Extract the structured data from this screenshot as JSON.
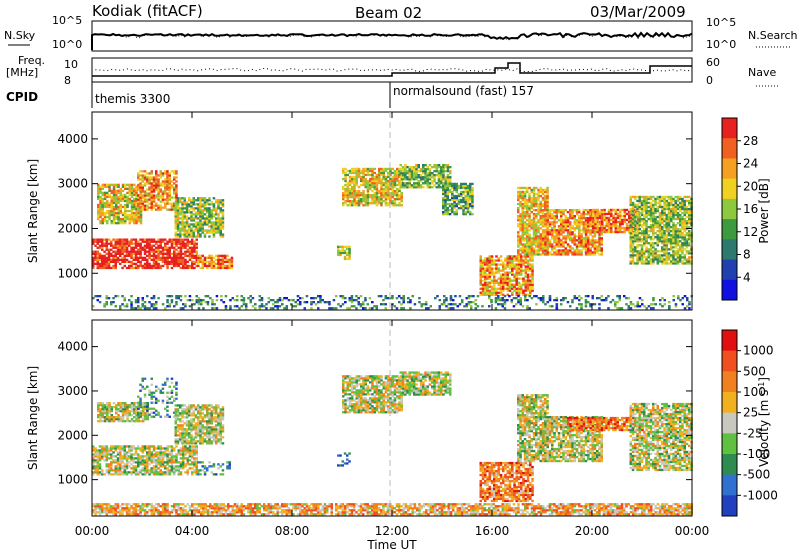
{
  "header": {
    "station": "Kodiak (fitACF)",
    "beam": "Beam 02",
    "date": "03/Mar/2009"
  },
  "summary_panel": {
    "left_labels": {
      "nsky": "N.Sky",
      "freq": "Freq.",
      "freq_unit": "[MHz]",
      "cpid": "CPID"
    },
    "right_labels": {
      "nsearch": "N.Search",
      "nave": "Nave"
    },
    "noise_ticks_left": [
      "10^5",
      "10^0"
    ],
    "noise_ticks_right": [
      "10^5",
      "10^0"
    ],
    "freq_ticks": [
      "10",
      "8"
    ],
    "nave_ticks": [
      "60",
      "0"
    ],
    "cpid_segments": [
      {
        "label": "themis 3300",
        "start_hour": 0.0
      },
      {
        "label": "normalsound (fast) 157",
        "start_hour": 12.0
      }
    ]
  },
  "chart_data": [
    {
      "type": "heatmap",
      "name": "power",
      "xlabel": "",
      "ylabel": "Slant Range [km]",
      "x_unit": "hours UT",
      "xlim": [
        0,
        24
      ],
      "ylim": [
        180,
        4600
      ],
      "yticks": [
        1000,
        2000,
        3000,
        4000
      ],
      "colorbar": {
        "label": "Power [dB]",
        "ticks": [
          "4",
          "8",
          "12",
          "16",
          "20",
          "24",
          "28"
        ],
        "colors": [
          "#1010e0",
          "#2040b0",
          "#2c7a6e",
          "#3e9a3e",
          "#8ec83e",
          "#f0d020",
          "#f5a020",
          "#f06020",
          "#e82020"
        ]
      },
      "regions": [
        {
          "t": [
            0.0,
            4.2
          ],
          "r": [
            1100,
            1750
          ],
          "level": 0.97
        },
        {
          "t": [
            4.2,
            5.6
          ],
          "r": [
            1100,
            1400
          ],
          "level": 0.78
        },
        {
          "t": [
            0.2,
            2.0
          ],
          "r": [
            2100,
            3000
          ],
          "level": 0.62
        },
        {
          "t": [
            1.8,
            3.4
          ],
          "r": [
            2400,
            3300
          ],
          "level": 0.72
        },
        {
          "t": [
            3.3,
            5.2
          ],
          "r": [
            1800,
            2700
          ],
          "level": 0.5
        },
        {
          "t": [
            9.8,
            10.3
          ],
          "r": [
            1300,
            1600
          ],
          "level": 0.55
        },
        {
          "t": [
            10.0,
            12.4
          ],
          "r": [
            2500,
            3350
          ],
          "level": 0.62
        },
        {
          "t": [
            12.3,
            14.3
          ],
          "r": [
            2900,
            3400
          ],
          "level": 0.45
        },
        {
          "t": [
            14.0,
            15.2
          ],
          "r": [
            2300,
            3000
          ],
          "level": 0.4
        },
        {
          "t": [
            15.5,
            17.6
          ],
          "r": [
            500,
            1400
          ],
          "level": 0.72
        },
        {
          "t": [
            17.0,
            18.2
          ],
          "r": [
            1400,
            2900
          ],
          "level": 0.66
        },
        {
          "t": [
            18.0,
            20.4
          ],
          "r": [
            1400,
            2400
          ],
          "level": 0.74
        },
        {
          "t": [
            20.0,
            21.8
          ],
          "r": [
            1900,
            2400
          ],
          "level": 0.82
        },
        {
          "t": [
            21.5,
            24.0
          ],
          "r": [
            1200,
            2700
          ],
          "level": 0.5
        },
        {
          "t": [
            0.0,
            24.0
          ],
          "r": [
            200,
            500
          ],
          "level": 0.3
        }
      ]
    },
    {
      "type": "heatmap",
      "name": "velocity",
      "xlabel": "Time UT",
      "ylabel": "Slant Range [km]",
      "x_unit": "hours UT",
      "xlim": [
        0,
        24
      ],
      "ylim": [
        180,
        4600
      ],
      "yticks": [
        1000,
        2000,
        3000,
        4000
      ],
      "xticks": [
        "00:00",
        "04:00",
        "08:00",
        "12:00",
        "16:00",
        "20:00",
        "00:00"
      ],
      "colorbar": {
        "label": "Velocity [m s",
        "label_superscript": "-1",
        "label_close": "]",
        "ticks": [
          "1000",
          "500",
          "100",
          "25",
          "-25",
          "-100",
          "-500",
          "-1000"
        ],
        "colors": [
          "#2040c0",
          "#3070d0",
          "#2e8c50",
          "#60c040",
          "#c8c8c0",
          "#f0b020",
          "#f08020",
          "#f05020",
          "#e01010"
        ]
      },
      "regions": [
        {
          "t": [
            0.0,
            4.2
          ],
          "r": [
            1100,
            1750
          ],
          "level": 0.5
        },
        {
          "t": [
            4.2,
            5.6
          ],
          "r": [
            1100,
            1400
          ],
          "level": 0.3
        },
        {
          "t": [
            0.2,
            2.2
          ],
          "r": [
            2300,
            2750
          ],
          "level": 0.5
        },
        {
          "t": [
            1.8,
            3.4
          ],
          "r": [
            2400,
            3300
          ],
          "level": 0.3
        },
        {
          "t": [
            3.3,
            5.2
          ],
          "r": [
            1800,
            2700
          ],
          "level": 0.5
        },
        {
          "t": [
            9.8,
            10.3
          ],
          "r": [
            1300,
            1600
          ],
          "level": 0.2
        },
        {
          "t": [
            10.0,
            12.4
          ],
          "r": [
            2500,
            3350
          ],
          "level": 0.5
        },
        {
          "t": [
            12.3,
            14.3
          ],
          "r": [
            2900,
            3400
          ],
          "level": 0.5
        },
        {
          "t": [
            15.5,
            17.6
          ],
          "r": [
            500,
            1400
          ],
          "level": 0.72
        },
        {
          "t": [
            17.0,
            18.2
          ],
          "r": [
            1400,
            2900
          ],
          "level": 0.5
        },
        {
          "t": [
            18.0,
            20.4
          ],
          "r": [
            1400,
            2400
          ],
          "level": 0.5
        },
        {
          "t": [
            19.0,
            22.0
          ],
          "r": [
            2100,
            2400
          ],
          "level": 0.78
        },
        {
          "t": [
            21.5,
            24.0
          ],
          "r": [
            1200,
            2700
          ],
          "level": 0.5
        },
        {
          "t": [
            0.0,
            24.0
          ],
          "r": [
            200,
            450
          ],
          "level": 0.64
        }
      ]
    }
  ]
}
